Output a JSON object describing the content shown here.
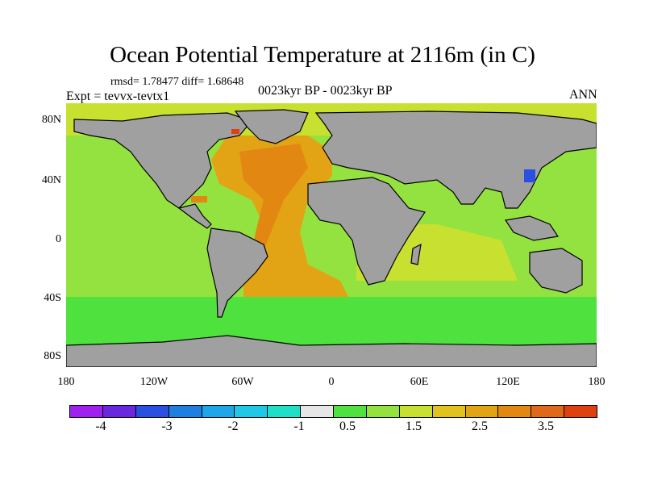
{
  "title": "Ocean Potential Temperature at 2116m (in C)",
  "stats": "rmsd= 1.78477 diff= 1.68648",
  "experiment": "Expt = tevvx-tevtx1",
  "period": "0023kyr BP - 0023kyr BP",
  "season": "ANN",
  "lat_ticks": [
    "80N",
    "40N",
    "0",
    "40S",
    "80S"
  ],
  "lon_ticks": [
    "180",
    "120W",
    "60W",
    "0",
    "60E",
    "120E",
    "180"
  ],
  "colorbar": {
    "colors": [
      "#a020f0",
      "#6a27e0",
      "#2b4fe0",
      "#1f7fe0",
      "#1ea6e8",
      "#20c8e8",
      "#1fe0c6",
      "#e6e6e6",
      "#4fe23f",
      "#94e23f",
      "#c8e030",
      "#e2c21c",
      "#e2a414",
      "#e28812",
      "#e0681a",
      "#e04010"
    ],
    "labels": [
      "-4",
      "-3",
      "-2",
      "-1",
      "0.5",
      "1.5",
      "2.5",
      "3.5"
    ]
  },
  "map_colors": {
    "land": "#a0a0a0",
    "band_arctic": "#c8e030",
    "band_pacific": "#94e23f",
    "band_south": "#4fe23f",
    "atlantic": "#e2a414",
    "atlantic_core": "#e28812",
    "indian": "#c8e030",
    "hot_spot": "#e04010",
    "cold_spot": "#2b4fe0"
  }
}
